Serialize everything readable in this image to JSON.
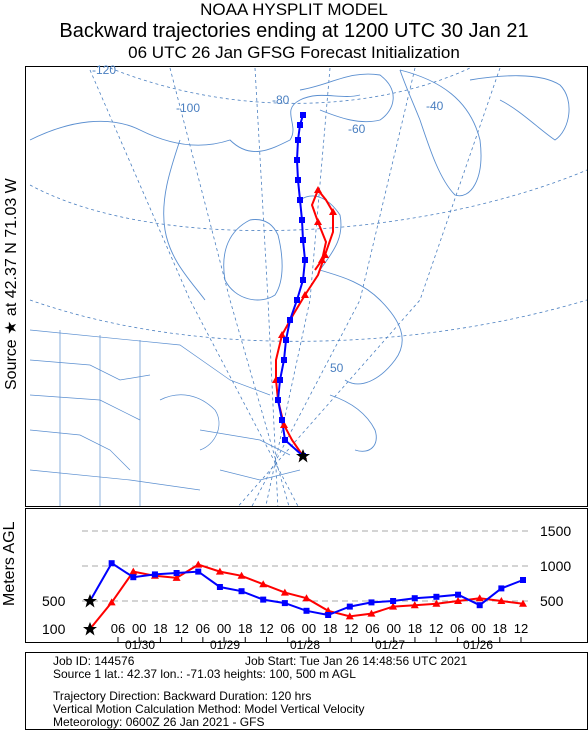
{
  "header": {
    "model": "NOAA HYSPLIT MODEL",
    "title": "Backward trajectories ending at 1200 UTC 30 Jan 21",
    "subtitle": "06 UTC 26 Jan    GFSG  Forecast Initialization"
  },
  "map": {
    "source_label": "Source ★ at   42.37 N   71.03 W",
    "grid_labels": {
      "lon_120": "-120",
      "lon_100": "-100",
      "lon_80": "-80",
      "lon_60": "-60",
      "lon_40": "-40",
      "lat_50": "50"
    },
    "colors": {
      "land_line": "#5b8fd0",
      "grid_line": "#4a7fc0",
      "traj_100m": "#ff0000",
      "traj_500m": "#0000ff",
      "source": "#000000"
    }
  },
  "chart_data": {
    "type": "line",
    "ylabel": "Meters AGL",
    "yticks_left": [
      "500",
      "100"
    ],
    "yticks_right": [
      "1500",
      "1000",
      "500"
    ],
    "x_hours": [
      "06",
      "00",
      "18",
      "12",
      "06",
      "00",
      "18",
      "12",
      "06",
      "00",
      "18",
      "12",
      "06",
      "00",
      "18",
      "12",
      "06",
      "00",
      "18",
      "12"
    ],
    "x_dates": [
      "01/30",
      "01/29",
      "01/28",
      "01/27",
      "01/26"
    ],
    "series": [
      {
        "name": "100",
        "color": "#ff0000",
        "marker": "triangle",
        "points": [
          [
            0,
            100
          ],
          [
            6,
            480
          ],
          [
            12,
            920
          ],
          [
            18,
            860
          ],
          [
            24,
            830
          ],
          [
            30,
            1020
          ],
          [
            36,
            920
          ],
          [
            42,
            860
          ],
          [
            48,
            740
          ],
          [
            54,
            620
          ],
          [
            60,
            540
          ],
          [
            66,
            360
          ],
          [
            72,
            280
          ],
          [
            78,
            320
          ],
          [
            84,
            420
          ],
          [
            90,
            440
          ],
          [
            96,
            460
          ],
          [
            102,
            500
          ],
          [
            108,
            540
          ],
          [
            114,
            500
          ],
          [
            120,
            460
          ]
        ]
      },
      {
        "name": "500",
        "color": "#0000ff",
        "marker": "square",
        "points": [
          [
            0,
            500
          ],
          [
            6,
            1040
          ],
          [
            12,
            840
          ],
          [
            18,
            880
          ],
          [
            24,
            900
          ],
          [
            30,
            920
          ],
          [
            36,
            700
          ],
          [
            42,
            640
          ],
          [
            48,
            520
          ],
          [
            54,
            470
          ],
          [
            60,
            360
          ],
          [
            66,
            300
          ],
          [
            72,
            420
          ],
          [
            78,
            480
          ],
          [
            84,
            500
          ],
          [
            90,
            540
          ],
          [
            96,
            560
          ],
          [
            102,
            590
          ],
          [
            108,
            440
          ],
          [
            114,
            680
          ],
          [
            120,
            800
          ]
        ]
      }
    ]
  },
  "info": {
    "job_id": "Job ID: 144576",
    "job_start": "Job Start: Tue Jan 26 14:48:56 UTC 2021",
    "source1": "Source 1 lat.: 42.37  lon.: -71.03  heights: 100, 500 m AGL",
    "direction": "Trajectory Direction: Backward      Duration: 120 hrs",
    "vertical": "Vertical Motion Calculation Method:      Model Vertical Velocity",
    "meteorology": "Meteorology: 0600Z 26 Jan 2021 - GFS"
  }
}
